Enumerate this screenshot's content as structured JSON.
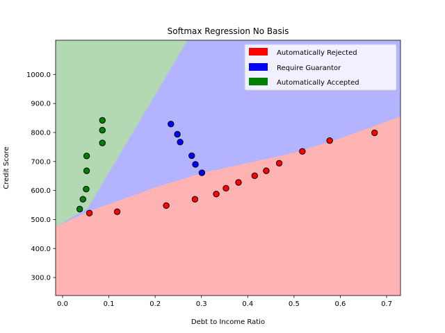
{
  "chart_data": {
    "type": "scatter",
    "title": "Softmax Regression No Basis",
    "xlabel": "Debt to Income Ratio",
    "ylabel": "Credit Score",
    "xlim": [
      -0.015,
      0.73
    ],
    "ylim": [
      238,
      1118
    ],
    "xticks": [
      0.0,
      0.1,
      0.2,
      0.3,
      0.4,
      0.5,
      0.6,
      0.7
    ],
    "xtick_labels": [
      "0.0",
      "0.1",
      "0.2",
      "0.3",
      "0.4",
      "0.5",
      "0.6",
      "0.7"
    ],
    "yticks": [
      300,
      400,
      500,
      600,
      700,
      800,
      900,
      1000
    ],
    "ytick_labels": [
      "300.0",
      "400.0",
      "500.0",
      "600.0",
      "700.0",
      "800.0",
      "900.0",
      "1000.0"
    ],
    "grid": false,
    "legend_position": "top-right",
    "legend": [
      {
        "label": "Automatically Rejected",
        "color": "#ff0000"
      },
      {
        "label": "Require Guarantor",
        "color": "#0000ff"
      },
      {
        "label": "Automatically Accepted",
        "color": "#008000"
      }
    ],
    "regions": [
      {
        "name": "Automatically Rejected",
        "color": "#ffb3b3"
      },
      {
        "name": "Require Guarantor",
        "color": "#b3b3ff"
      },
      {
        "name": "Automatically Accepted",
        "color": "#b3d9b3"
      }
    ],
    "boundaries": {
      "rejected_upper": {
        "x": [
          -0.015,
          0.06,
          0.2,
          0.3,
          0.4,
          0.5,
          0.6,
          0.73
        ],
        "y": [
          475,
          530,
          610,
          660,
          695,
          730,
          780,
          855
        ]
      },
      "accepted_guarantor": {
        "x": [
          0.055,
          0.27
        ],
        "y": [
          540,
          1118
        ]
      }
    },
    "series": [
      {
        "label": "Automatically Rejected",
        "color": "#ff0000",
        "points": [
          [
            0.058,
            522
          ],
          [
            0.118,
            527
          ],
          [
            0.224,
            548
          ],
          [
            0.286,
            570
          ],
          [
            0.332,
            588
          ],
          [
            0.353,
            608
          ],
          [
            0.38,
            628
          ],
          [
            0.415,
            651
          ],
          [
            0.44,
            668
          ],
          [
            0.468,
            694
          ],
          [
            0.518,
            735
          ],
          [
            0.577,
            772
          ],
          [
            0.674,
            799
          ]
        ]
      },
      {
        "label": "Require Guarantor",
        "color": "#0000ff",
        "points": [
          [
            0.234,
            829
          ],
          [
            0.248,
            794
          ],
          [
            0.254,
            767
          ],
          [
            0.279,
            720
          ],
          [
            0.287,
            690
          ],
          [
            0.301,
            661
          ]
        ]
      },
      {
        "label": "Automatically Accepted",
        "color": "#008000",
        "points": [
          [
            0.037,
            536
          ],
          [
            0.044,
            570
          ],
          [
            0.051,
            605
          ],
          [
            0.052,
            668
          ],
          [
            0.052,
            719
          ],
          [
            0.086,
            764
          ],
          [
            0.086,
            808
          ],
          [
            0.086,
            842
          ]
        ]
      }
    ]
  }
}
